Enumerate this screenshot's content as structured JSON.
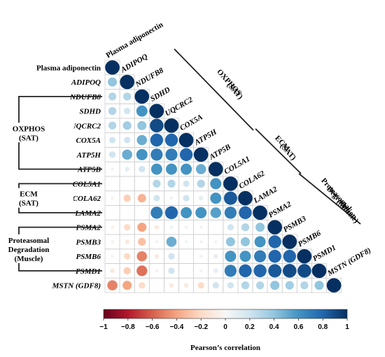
{
  "chart_data": {
    "type": "heatmap",
    "style": "lower-triangle correlation circles",
    "variables": [
      "Plasma adiponectin",
      "ADIPOQ",
      "NDUFB8",
      "SDHD",
      "UQCRC2",
      "COX5A",
      "ATP5H",
      "ATP5B",
      "COL5A1",
      "COLA62",
      "LAMA2",
      "PSMA2",
      "PSMB3",
      "PSMB6",
      "PSMD1",
      "MSTN (GDF8)"
    ],
    "italic": [
      false,
      true,
      true,
      true,
      true,
      true,
      true,
      true,
      true,
      true,
      true,
      true,
      true,
      true,
      true,
      true
    ],
    "matrix": [
      [
        1.0
      ],
      [
        0.4,
        1.0
      ],
      [
        0.3,
        0.3,
        1.0
      ],
      [
        0.3,
        0.2,
        0.6,
        1.0
      ],
      [
        0.3,
        0.35,
        0.4,
        0.9,
        1.0
      ],
      [
        0.2,
        0.2,
        0.5,
        0.8,
        0.8,
        1.0
      ],
      [
        0.2,
        0.5,
        0.6,
        0.7,
        0.7,
        0.8,
        1.0
      ],
      [
        0.05,
        0.1,
        0.2,
        0.6,
        0.6,
        0.6,
        0.5,
        1.0
      ],
      [
        0.0,
        0.0,
        0.0,
        0.3,
        0.3,
        0.2,
        0.3,
        0.6,
        1.0
      ],
      [
        -0.05,
        -0.25,
        -0.35,
        0.2,
        0.05,
        0.2,
        0.1,
        0.6,
        0.85,
        1.0
      ],
      [
        0.0,
        0.0,
        0.0,
        0.7,
        0.8,
        0.6,
        0.6,
        0.55,
        0.7,
        0.8,
        1.0
      ],
      [
        -0.05,
        -0.2,
        -0.4,
        -0.1,
        0.05,
        0.05,
        -0.05,
        0.0,
        0.2,
        0.3,
        0.4,
        1.0
      ],
      [
        -0.05,
        -0.1,
        -0.3,
        0.05,
        0.5,
        0.05,
        0.05,
        0.05,
        0.4,
        0.4,
        0.6,
        0.8,
        1.0
      ],
      [
        -0.05,
        -0.2,
        -0.5,
        -0.1,
        0.2,
        0.0,
        0.05,
        0.1,
        0.6,
        0.6,
        0.7,
        0.8,
        0.8,
        1.0
      ],
      [
        -0.1,
        -0.25,
        -0.55,
        -0.05,
        0.2,
        0.0,
        0.05,
        0.1,
        0.7,
        0.8,
        0.8,
        0.85,
        0.9,
        0.9,
        1.0
      ],
      [
        -0.5,
        -0.4,
        -0.2,
        0.0,
        -0.1,
        -0.1,
        -0.2,
        0.2,
        0.2,
        0.3,
        0.3,
        0.4,
        0.35,
        0.3,
        0.4,
        1.0
      ]
    ],
    "groups": [
      {
        "name": "OXPHOS\n(SAT)",
        "from": 2,
        "to": 7
      },
      {
        "name": "ECM\n(SAT)",
        "from": 8,
        "to": 10
      },
      {
        "name": "Proteasomal\nDegradation\n(Muscle)",
        "from": 11,
        "to": 14
      }
    ],
    "colorbar": {
      "ticks": [
        "−1",
        "−0.8",
        "−0.6",
        "−0.4",
        "−0.2",
        "0",
        "0.2",
        "0.4",
        "0.6",
        "0.8",
        "1"
      ],
      "range": [
        -1,
        1
      ],
      "xlabel": "Pearson’s correlation"
    },
    "colors": {
      "negative": "#67001f",
      "neutral": "#f7f7f7",
      "positive": "#053061"
    }
  }
}
